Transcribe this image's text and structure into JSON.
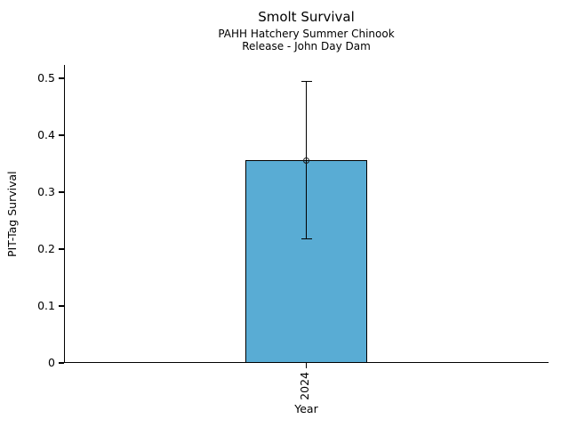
{
  "figure": {
    "background": "#ffffff",
    "text_color": "#000000"
  },
  "chart_data": {
    "type": "bar",
    "title": "Smolt Survival",
    "subtitle": [
      "PAHH Hatchery Summer Chinook",
      "Release - John Day Dam"
    ],
    "xlabel": "Year",
    "ylabel": "PIT-Tag Survival",
    "categories": [
      "2024"
    ],
    "values": [
      0.356
    ],
    "error_low": [
      0.218
    ],
    "error_high": [
      0.495
    ],
    "marker": "open-circle",
    "bar_color": "#59ACD4",
    "bar_edge_color": "#000000",
    "error_color": "#000000",
    "ylim": [
      0,
      0.5235
    ],
    "yticks": [
      0,
      0.1,
      0.2,
      0.3,
      0.4,
      0.5
    ],
    "ytick_labels": [
      "0",
      "0.1",
      "0.2",
      "0.3",
      "0.4",
      "0.5"
    ],
    "grid": false,
    "legend": false,
    "spines": [
      "left",
      "bottom"
    ]
  }
}
